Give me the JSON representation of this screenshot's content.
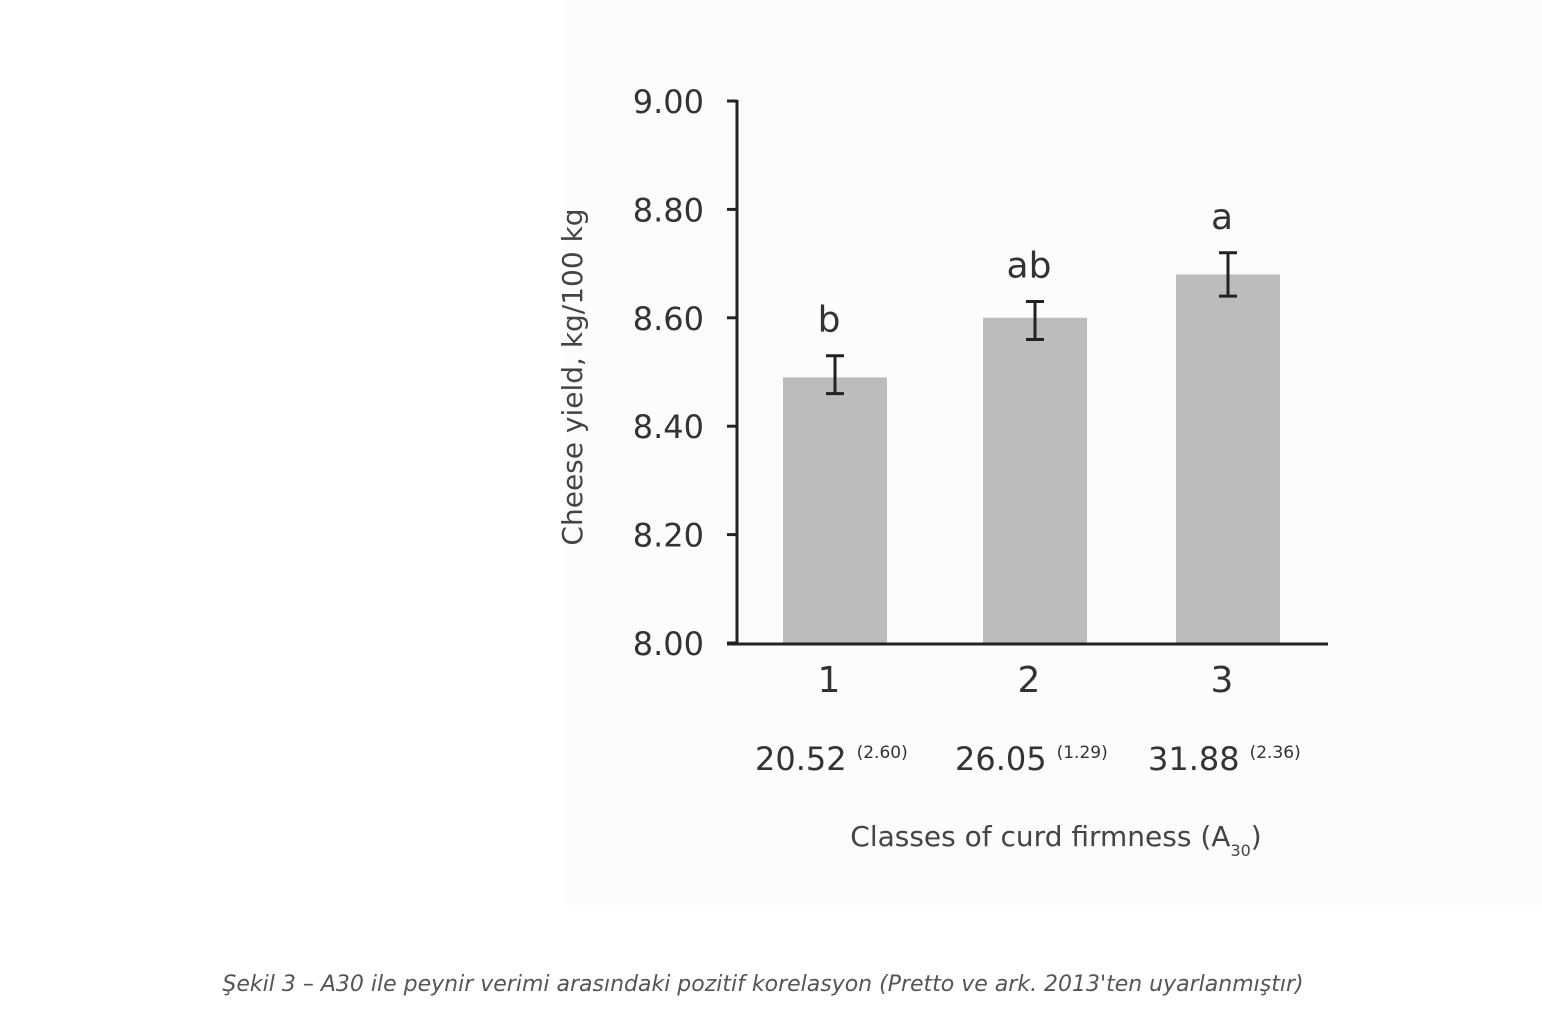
{
  "chart_data": {
    "type": "bar",
    "categories": [
      "1",
      "2",
      "3"
    ],
    "values": [
      8.49,
      8.6,
      8.68
    ],
    "error_low": [
      8.46,
      8.56,
      8.64
    ],
    "error_high": [
      8.53,
      8.63,
      8.72
    ],
    "significance_letters": [
      "b",
      "ab",
      "a"
    ],
    "class_means": [
      "20.52",
      "26.05",
      "31.88"
    ],
    "class_sds": [
      "(2.60)",
      "(1.29)",
      "(2.36)"
    ],
    "title": "",
    "xlabel": "Classes of curd firmness (A",
    "xlabel_subscript": "30",
    "xlabel_suffix": ")",
    "ylabel": "Cheese yield, kg/100 kg",
    "ylim": [
      8.0,
      9.0
    ],
    "yticks": [
      "8.00",
      "8.20",
      "8.40",
      "8.60",
      "8.80",
      "9.00"
    ],
    "grid": false,
    "colors": {
      "bar": "#bcbcbe",
      "axis": "#222222",
      "text": "#333333"
    }
  },
  "caption": "Şekil 3 – A30 ile peynir verimi arasındaki pozitif korelasyon (Pretto ve ark. 2013'ten uyarlanmıştır)"
}
